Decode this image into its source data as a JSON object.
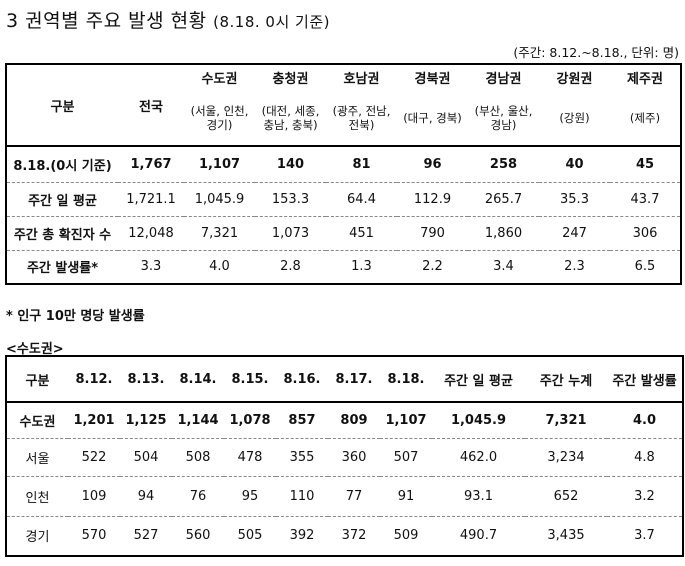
{
  "title": {
    "main": "3 권역별 주요 발생 현황",
    "sub": "(8.18. 0시 기준)"
  },
  "note": "(주간: 8.12.~8.18., 단위: 명)",
  "table1": {
    "header": {
      "col0": "구분",
      "col1": "전국",
      "regions": [
        {
          "name": "수도권",
          "detail": "(서울, 인천, 경기)"
        },
        {
          "name": "충청권",
          "detail": "(대전, 세종, 충남, 충북)"
        },
        {
          "name": "호남권",
          "detail": "(광주, 전남, 전북)"
        },
        {
          "name": "경북권",
          "detail": "(대구, 경북)"
        },
        {
          "name": "경남권",
          "detail": "(부산, 울산, 경남)"
        },
        {
          "name": "강원권",
          "detail": "(강원)"
        },
        {
          "name": "제주권",
          "detail": "(제주)"
        }
      ]
    },
    "rows": [
      {
        "label": "8.18.(0시 기준)",
        "values": [
          "1,767",
          "1,107",
          "140",
          "81",
          "96",
          "258",
          "40",
          "45"
        ]
      },
      {
        "label": "주간 일 평균",
        "values": [
          "1,721.1",
          "1,045.9",
          "153.3",
          "64.4",
          "112.9",
          "265.7",
          "35.3",
          "43.7"
        ]
      },
      {
        "label": "주간 총 확진자 수",
        "values": [
          "12,048",
          "7,321",
          "1,073",
          "451",
          "790",
          "1,860",
          "247",
          "306"
        ]
      },
      {
        "label": "주간 발생률*",
        "values": [
          "3.3",
          "4.0",
          "2.8",
          "1.3",
          "2.2",
          "3.4",
          "2.3",
          "6.5"
        ]
      }
    ]
  },
  "footnote": "* 인구 10만 명당 발생률",
  "section2_title": "<수도권>",
  "table2": {
    "header": [
      "구분",
      "8.12.",
      "8.13.",
      "8.14.",
      "8.15.",
      "8.16.",
      "8.17.",
      "8.18.",
      "주간 일 평균",
      "주간 누계",
      "주간 발생률"
    ],
    "rows": [
      {
        "label": "수도권",
        "values": [
          "1,201",
          "1,125",
          "1,144",
          "1,078",
          "857",
          "809",
          "1,107",
          "1,045.9",
          "7,321",
          "4.0"
        ]
      },
      {
        "label": "서울",
        "values": [
          "522",
          "504",
          "508",
          "478",
          "355",
          "360",
          "507",
          "462.0",
          "3,234",
          "4.8"
        ]
      },
      {
        "label": "인천",
        "values": [
          "109",
          "94",
          "76",
          "95",
          "110",
          "77",
          "91",
          "93.1",
          "652",
          "3.2"
        ]
      },
      {
        "label": "경기",
        "values": [
          "570",
          "527",
          "560",
          "505",
          "392",
          "372",
          "509",
          "490.7",
          "3,435",
          "3.7"
        ]
      }
    ]
  }
}
